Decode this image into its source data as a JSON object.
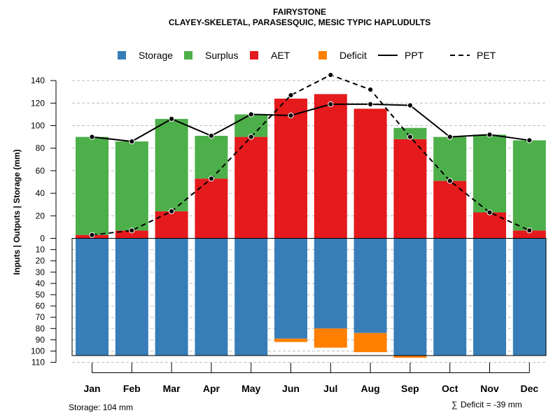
{
  "chart_data": {
    "type": "bar",
    "title": "FAIRYSTONE",
    "subtitle": "CLAYEY-SKELETAL, PARASESQUIC, MESIC TYPIC HAPLUDULTS",
    "ylabel": "Inputs | Outputs | Storage    (mm)",
    "categories": [
      "Jan",
      "Feb",
      "Mar",
      "Apr",
      "May",
      "Jun",
      "Jul",
      "Aug",
      "Sep",
      "Oct",
      "Nov",
      "Dec"
    ],
    "ylim": [
      -110,
      150
    ],
    "y_ticks_upper": [
      0,
      20,
      40,
      60,
      80,
      100,
      120,
      140
    ],
    "y_ticks_lower": [
      10,
      20,
      30,
      40,
      50,
      60,
      70,
      80,
      90,
      100,
      110
    ],
    "legend": {
      "placement": "top",
      "entries": [
        {
          "label": "Storage",
          "kind": "box",
          "color": "#377EB8"
        },
        {
          "label": "Surplus",
          "kind": "box",
          "color": "#4DAF4A"
        },
        {
          "label": "AET",
          "kind": "box",
          "color": "#E41A1C"
        },
        {
          "label": "Deficit",
          "kind": "box",
          "color": "#FF7F00"
        },
        {
          "label": "PPT",
          "kind": "solid"
        },
        {
          "label": "PET",
          "kind": "dashed"
        }
      ]
    },
    "series": [
      {
        "name": "AET",
        "color": "#E41A1C",
        "values": [
          3,
          7,
          24,
          53,
          90,
          124,
          128,
          115,
          88,
          51,
          23,
          7
        ]
      },
      {
        "name": "Surplus",
        "color": "#4DAF4A",
        "values": [
          87,
          79,
          82,
          38,
          20,
          0,
          0,
          0,
          10,
          39,
          69,
          80
        ]
      },
      {
        "name": "Storage",
        "color": "#377EB8",
        "values": [
          104,
          104,
          104,
          104,
          104,
          89,
          80,
          84,
          104,
          104,
          104,
          104
        ]
      },
      {
        "name": "Deficit",
        "color": "#FF7F00",
        "values": [
          0,
          0,
          0,
          0,
          0,
          3,
          17,
          17,
          2,
          0,
          0,
          0
        ]
      },
      {
        "name": "PPT",
        "values": [
          90,
          86,
          106,
          91,
          110,
          109,
          119,
          119,
          118,
          90,
          92,
          87
        ]
      },
      {
        "name": "PET",
        "values": [
          3,
          7,
          24,
          53,
          90,
          127,
          145,
          132,
          90,
          51,
          23,
          7
        ]
      }
    ],
    "storage_capacity": 104
  },
  "footer": {
    "storage_text": "Storage: 104 mm",
    "deficit_symbol": "∑",
    "deficit_text": "Deficit = -39 mm"
  }
}
